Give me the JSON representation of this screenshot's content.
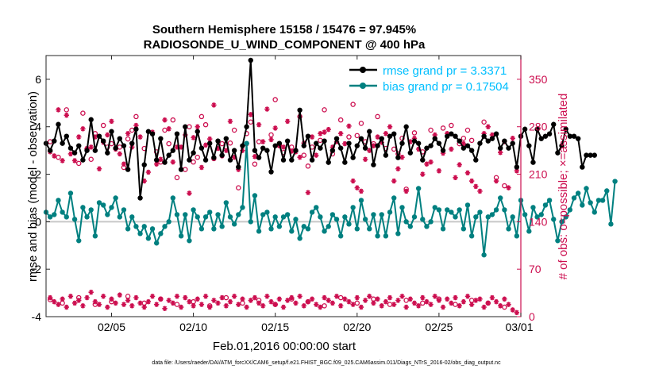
{
  "colors": {
    "rmse": "#000000",
    "bias": "#008080",
    "obs": "#cc0e4f",
    "rmse_text": "#00bfff",
    "axis": "#262626",
    "zero_line": "#c8c8c8"
  },
  "figure": {
    "footer": "data file: /Users/raeder/DAI/ATM_forcXX/CAM6_setup/f.e21.FHIST_BGC.f09_025.CAM6assim.011/Diags_NTrS_2016-02/obs_diag_output.nc"
  },
  "chart_data": {
    "type": "line",
    "title": "Southern Hemisphere 15158 / 15476 = 97.945%",
    "subtitle": "RADIOSONDE_U_WIND_COMPONENT @ 400 hPa",
    "xlabel": "Feb.01,2016 00:00:00 start",
    "ylabel_left": "rmse and bias (model - observation)",
    "ylabel_right": "# of obs: o=possible; ×=assimilated",
    "xlim": [
      1,
      30
    ],
    "ylim_left": [
      -4,
      7
    ],
    "ylim_right": [
      0,
      385
    ],
    "x_ticks": [
      {
        "x": 5,
        "label": "02/05"
      },
      {
        "x": 10,
        "label": "02/10"
      },
      {
        "x": 15,
        "label": "02/15"
      },
      {
        "x": 20,
        "label": "02/20"
      },
      {
        "x": 25,
        "label": "02/25"
      },
      {
        "x": 30,
        "label": "03/01"
      }
    ],
    "y_ticks_left": [
      -4,
      -2,
      0,
      2,
      4,
      6
    ],
    "y_ticks_right": [
      0,
      70,
      140,
      210,
      280,
      350
    ],
    "grid": false,
    "legend_position": "top-right",
    "legend": [
      {
        "label": "rmse grand pr = 3.3371",
        "series": "rmse"
      },
      {
        "label": "bias grand pr = 0.17504",
        "series": "bias"
      }
    ],
    "x_start": 1.0,
    "x_step": 0.25,
    "series": [
      {
        "key": "rmse",
        "values": [
          3.3,
          3.0,
          3.4,
          4.1,
          3.3,
          3.6,
          3.1,
          2.9,
          3.2,
          2.6,
          3.0,
          4.3,
          3.0,
          3.6,
          3.4,
          2.9,
          3.8,
          3.1,
          3.5,
          3.2,
          2.2,
          3.3,
          3.9,
          1.0,
          2.4,
          3.8,
          3.7,
          2.6,
          3.5,
          2.5,
          2.8,
          3.0,
          3.7,
          2.2,
          4.0,
          2.6,
          2.9,
          3.8,
          3.1,
          2.6,
          3.3,
          2.7,
          3.4,
          2.8,
          3.5,
          2.6,
          3.0,
          2.3,
          3.2,
          4.0,
          6.8,
          3.0,
          2.7,
          3.1,
          3.0,
          2.1,
          3.2,
          3.3,
          2.6,
          3.4,
          2.6,
          3.0,
          4.7,
          3.2,
          3.6,
          2.6,
          3.3,
          3.1,
          3.4,
          2.5,
          3.0,
          3.5,
          3.1,
          2.5,
          3.3,
          2.7,
          3.2,
          3.5,
          3.1,
          3.8,
          2.4,
          3.2,
          3.5,
          2.8,
          3.6,
          3.7,
          2.7,
          3.3,
          4.0,
          2.9,
          3.4,
          3.3,
          2.6,
          3.1,
          3.2,
          3.5,
          3.3,
          3.0,
          3.6,
          3.7,
          3.6,
          3.4,
          3.1,
          3.2,
          3.0,
          2.6,
          3.3,
          3.6,
          3.4,
          3.5,
          3.7,
          3.1,
          3.4,
          3.1,
          3.3,
          2.3,
          3.6,
          3.9,
          3.2,
          2.5,
          3.9,
          3.5,
          3.6,
          3.7,
          4.1,
          2.9,
          3.2,
          3.9,
          3.6,
          3.6,
          3.5,
          2.3,
          2.8,
          2.8,
          2.8
        ],
        "marker": "dot"
      },
      {
        "key": "bias",
        "values": [
          0.4,
          0.2,
          0.3,
          0.9,
          0.4,
          0.2,
          1.2,
          0.1,
          -0.8,
          0.6,
          0.2,
          0.5,
          -0.6,
          0.8,
          0.7,
          0.3,
          0.6,
          1.0,
          0.2,
          0.5,
          -0.3,
          0.2,
          -0.2,
          -0.5,
          -0.2,
          -0.7,
          -0.3,
          -0.9,
          -0.5,
          -0.2,
          0.0,
          1.0,
          0.3,
          -0.6,
          0.3,
          -0.8,
          0.5,
          0.2,
          -0.3,
          0.2,
          0.4,
          -0.3,
          0.3,
          -0.2,
          0.8,
          0.2,
          -0.1,
          0.3,
          0.6,
          3.3,
          0.0,
          1.1,
          -0.4,
          0.3,
          0.4,
          -0.3,
          0.2,
          -0.2,
          0.2,
          0.3,
          -0.4,
          0.1,
          -0.7,
          -0.2,
          -0.3,
          0.4,
          0.6,
          0.2,
          -0.4,
          -0.2,
          0.3,
          0.1,
          -0.6,
          0.2,
          -0.1,
          0.6,
          -0.3,
          0.9,
          0.1,
          -0.3,
          0.3,
          -0.6,
          0.3,
          -0.6,
          0.4,
          1.0,
          -0.5,
          0.6,
          0.0,
          -0.2,
          0.2,
          1.4,
          0.1,
          -0.2,
          0.0,
          0.6,
          0.5,
          -0.3,
          0.5,
          0.4,
          0.2,
          0.5,
          -0.3,
          0.7,
          -0.6,
          0.2,
          0.4,
          -1.4,
          0.2,
          0.3,
          0.5,
          1.0,
          0.5,
          -0.3,
          0.2,
          -0.6,
          0.9,
          0.3,
          -0.4,
          0.6,
          0.2,
          0.3,
          0.7,
          0.9,
          0.1,
          -0.8,
          0.0,
          0.2,
          0.5,
          1.0,
          1.2,
          0.7,
          1.4,
          0.8,
          0.4,
          0.9,
          0.9,
          1.3,
          -0.1,
          1.7
        ],
        "marker": "dot"
      },
      {
        "key": "obs_possible",
        "x": [
          1.25,
          1.75,
          2.25,
          3.0,
          3.25,
          3.5,
          3.75,
          4.0,
          4.5,
          4.75,
          5.0,
          5.5,
          5.75,
          6.0,
          6.25,
          6.5,
          7.0,
          7.75,
          8.0,
          8.25,
          8.5,
          8.75,
          9.0,
          9.5,
          9.75,
          10.0,
          10.25,
          10.5,
          10.75,
          11.25,
          11.75,
          12.25,
          12.5,
          12.75,
          13.25,
          13.5,
          13.75,
          14.0,
          14.75,
          15.0,
          15.25,
          15.5,
          16.0,
          16.5,
          16.75,
          17.0,
          17.25,
          17.75,
          18.0,
          18.5,
          19.0,
          19.5,
          19.75,
          20.0,
          20.25,
          20.5,
          21.0,
          21.25,
          21.75,
          22.25,
          22.5,
          22.75,
          23.0,
          23.5,
          24.0,
          24.5,
          25.25,
          25.75,
          26.25,
          26.5,
          26.75,
          27.0,
          27.75,
          28.5,
          29.0
        ],
        "values": [
          258,
          235,
          305,
          226,
          300,
          247,
          232,
          270,
          282,
          250,
          255,
          250,
          220,
          262,
          275,
          295,
          248,
          243,
          228,
          275,
          255,
          290,
          205,
          217,
          280,
          228,
          235,
          295,
          283,
          233,
          255,
          256,
          275,
          190,
          270,
          287,
          225,
          258,
          268,
          320,
          253,
          242,
          250,
          295,
          238,
          222,
          250,
          260,
          305,
          240,
          290,
          265,
          313,
          267,
          285,
          258,
          255,
          295,
          248,
          247,
          240,
          263,
          188,
          271,
          243,
          275,
          278,
          282,
          255,
          263,
          275,
          260,
          287,
          205,
          193
        ],
        "marker": "o"
      },
      {
        "key": "obs_assimilated",
        "x": [
          1.25,
          1.5,
          1.75,
          2.0,
          2.25,
          2.5,
          2.75,
          3.0,
          3.25,
          3.5,
          3.75,
          4.0,
          4.25,
          4.5,
          4.75,
          5.0,
          5.25,
          5.5,
          5.75,
          6.0,
          6.25,
          6.5,
          6.75,
          7.0,
          7.25,
          7.5,
          7.75,
          8.0,
          8.25,
          8.5,
          8.75,
          9.0,
          9.25,
          9.5,
          9.75,
          10.0,
          10.25,
          10.5,
          10.75,
          11.0,
          11.25,
          11.5,
          11.75,
          12.0,
          12.25,
          12.5,
          12.75,
          13.0,
          13.25,
          13.5,
          13.75,
          14.0,
          14.25,
          14.5,
          14.75,
          15.0,
          15.25,
          15.5,
          15.75,
          16.0,
          16.25,
          16.5,
          16.75,
          17.0,
          17.25,
          17.5,
          17.75,
          18.0,
          18.25,
          18.5,
          18.75,
          19.0,
          19.25,
          19.5,
          19.75,
          20.0,
          20.25,
          20.5,
          20.75,
          21.0,
          21.25,
          21.5,
          21.75,
          22.0,
          22.25,
          22.5,
          22.75,
          23.0,
          23.25,
          23.5,
          23.75,
          24.0,
          24.25,
          24.5,
          24.75,
          25.0,
          25.25,
          25.5,
          25.75,
          26.0,
          26.25,
          26.5,
          26.75,
          27.0,
          27.25,
          27.5,
          27.75,
          28.0,
          28.25,
          28.5,
          28.75,
          29.0,
          29.25,
          29.5,
          29.75
        ],
        "values": [
          243,
          237,
          305,
          230,
          297,
          240,
          230,
          265,
          277,
          248,
          250,
          265,
          218,
          257,
          268,
          288,
          247,
          240,
          225,
          270,
          250,
          282,
          265,
          200,
          213,
          272,
          225,
          232,
          290,
          277,
          228,
          250,
          250,
          268,
          182,
          264,
          280,
          220,
          253,
          262,
          312,
          248,
          237,
          245,
          288,
          235,
          217,
          245,
          255,
          298,
          236,
          283,
          258,
          306,
          261,
          278,
          252,
          250,
          288,
          244,
          243,
          235,
          256,
          183,
          265,
          238,
          270,
          272,
          276,
          250,
          258,
          270,
          255,
          281,
          200,
          190,
          185,
          232,
          245,
          252,
          265,
          257,
          270,
          280,
          200,
          218,
          235,
          185,
          258,
          263,
          247,
          210,
          225,
          228,
          268,
          215,
          241,
          270,
          247,
          205,
          224,
          255,
          212,
          200,
          192,
          185,
          270,
          280,
          268,
          200,
          242,
          258,
          190,
          263,
          215
        ],
        "marker": "x"
      },
      {
        "key": "obs_bottom_possible",
        "x": [
          1.25,
          2.0,
          3.0,
          4.0,
          5.0,
          6.0,
          7.0,
          8.0,
          9.0,
          10.0,
          11.0,
          12.0,
          13.0,
          14.0,
          15.0,
          16.0,
          17.0,
          18.0,
          19.0,
          20.0,
          21.0,
          22.0,
          23.0,
          24.0,
          25.0,
          26.0,
          27.0,
          28.0,
          29.0
        ],
        "values": [
          25,
          20,
          28,
          18,
          22,
          30,
          20,
          26,
          18,
          22,
          16,
          28,
          20,
          24,
          18,
          26,
          22,
          16,
          28,
          20,
          26,
          18,
          24,
          20,
          26,
          18,
          24,
          20,
          14
        ],
        "marker": "o"
      },
      {
        "key": "obs_bottom_assimilated",
        "x": [
          1.25,
          1.5,
          1.75,
          2.0,
          2.25,
          2.5,
          2.75,
          3.0,
          3.25,
          3.5,
          3.75,
          4.0,
          4.25,
          4.5,
          4.75,
          5.0,
          5.25,
          5.5,
          5.75,
          6.0,
          6.25,
          6.5,
          6.75,
          7.0,
          7.25,
          7.5,
          7.75,
          8.0,
          8.25,
          8.5,
          8.75,
          9.0,
          9.25,
          9.5,
          9.75,
          10.0,
          10.25,
          10.5,
          10.75,
          11.0,
          11.25,
          11.5,
          11.75,
          12.0,
          12.25,
          12.5,
          12.75,
          13.0,
          13.25,
          13.5,
          13.75,
          14.0,
          14.25,
          14.5,
          14.75,
          15.0,
          15.25,
          15.5,
          15.75,
          16.0,
          16.25,
          16.5,
          16.75,
          17.0,
          17.25,
          17.5,
          17.75,
          18.0,
          18.25,
          18.5,
          18.75,
          19.0,
          19.25,
          19.5,
          19.75,
          20.0,
          20.25,
          20.5,
          20.75,
          21.0,
          21.25,
          21.5,
          21.75,
          22.0,
          22.25,
          22.5,
          22.75,
          23.0,
          23.25,
          23.5,
          23.75,
          24.0,
          24.25,
          24.5,
          24.75,
          25.0,
          25.25,
          25.5,
          25.75,
          26.0,
          26.25,
          26.5,
          26.75,
          27.0,
          27.25,
          27.5,
          27.75,
          28.0,
          28.25,
          28.5,
          28.75,
          29.0,
          29.25,
          29.5,
          29.75
        ],
        "values": [
          28,
          22,
          18,
          26,
          14,
          30,
          20,
          24,
          16,
          28,
          36,
          22,
          18,
          30,
          14,
          26,
          20,
          32,
          18,
          24,
          16,
          28,
          20,
          14,
          22,
          30,
          18,
          26,
          12,
          24,
          20,
          30,
          14,
          28,
          22,
          16,
          26,
          18,
          30,
          14,
          24,
          20,
          28,
          16,
          22,
          30,
          18,
          26,
          14,
          24,
          28,
          20,
          16,
          30,
          22,
          18,
          26,
          14,
          24,
          28,
          20,
          30,
          16,
          22,
          26,
          18,
          14,
          28,
          24,
          20,
          30,
          16,
          26,
          22,
          18,
          28,
          14,
          24,
          30,
          20,
          26,
          16,
          22,
          28,
          18,
          24,
          30,
          14,
          26,
          20,
          16,
          28,
          22,
          18,
          30,
          24,
          14,
          26,
          20,
          28,
          16,
          22,
          30,
          18,
          24,
          26,
          14,
          20,
          28,
          22,
          16,
          26,
          18,
          10,
          6
        ],
        "marker": "x"
      }
    ]
  }
}
